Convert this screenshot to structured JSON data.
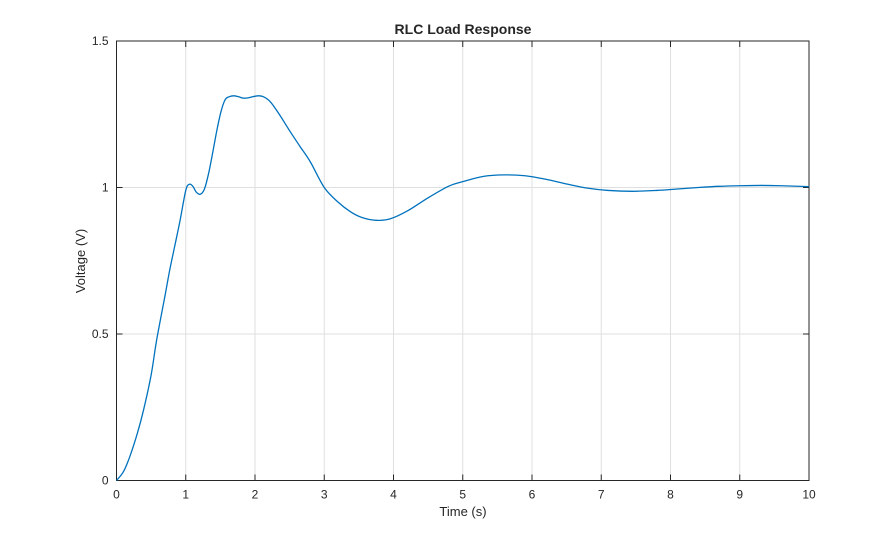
{
  "chart_data": {
    "type": "line",
    "title": "RLC Load Response",
    "xlabel": "Time (s)",
    "ylabel": "Voltage (V)",
    "xlim": [
      0,
      10
    ],
    "ylim": [
      0,
      1.5
    ],
    "xticks": [
      "0",
      "1",
      "2",
      "3",
      "4",
      "5",
      "6",
      "7",
      "8",
      "9",
      "10"
    ],
    "yticks": [
      "0",
      "0.5",
      "1",
      "1.5"
    ],
    "grid": true,
    "color": "#0072bd",
    "series": [
      {
        "name": "Voltage",
        "x": [
          0,
          0.1,
          0.19,
          0.3,
          0.39,
          0.5,
          0.58,
          0.7,
          0.77,
          0.85,
          0.92,
          1.0,
          1.05,
          1.1,
          1.15,
          1.21,
          1.27,
          1.33,
          1.39,
          1.45,
          1.51,
          1.57,
          1.63,
          1.69,
          1.76,
          1.83,
          1.9,
          1.97,
          2.05,
          2.12,
          2.22,
          2.35,
          2.51,
          2.65,
          2.8,
          3.0,
          3.2,
          3.38,
          3.55,
          3.75,
          3.95,
          4.2,
          4.5,
          4.8,
          5.0,
          5.3,
          5.6,
          5.9,
          6.2,
          6.5,
          6.8,
          7.1,
          7.45,
          7.8,
          8.1,
          8.4,
          8.7,
          9.0,
          9.3,
          9.6,
          10.0
        ],
        "y": [
          0,
          0.03,
          0.08,
          0.16,
          0.24,
          0.36,
          0.48,
          0.63,
          0.72,
          0.81,
          0.89,
          0.99,
          1.011,
          1.005,
          0.985,
          0.977,
          0.995,
          1.048,
          1.12,
          1.196,
          1.26,
          1.3,
          1.31,
          1.313,
          1.31,
          1.305,
          1.306,
          1.31,
          1.313,
          1.31,
          1.293,
          1.25,
          1.19,
          1.14,
          1.087,
          1.0,
          0.95,
          0.917,
          0.897,
          0.888,
          0.893,
          0.92,
          0.965,
          1.005,
          1.02,
          1.038,
          1.043,
          1.04,
          1.028,
          1.012,
          0.998,
          0.99,
          0.987,
          0.99,
          0.995,
          1.0,
          1.004,
          1.006,
          1.007,
          1.006,
          1.003
        ]
      }
    ]
  }
}
